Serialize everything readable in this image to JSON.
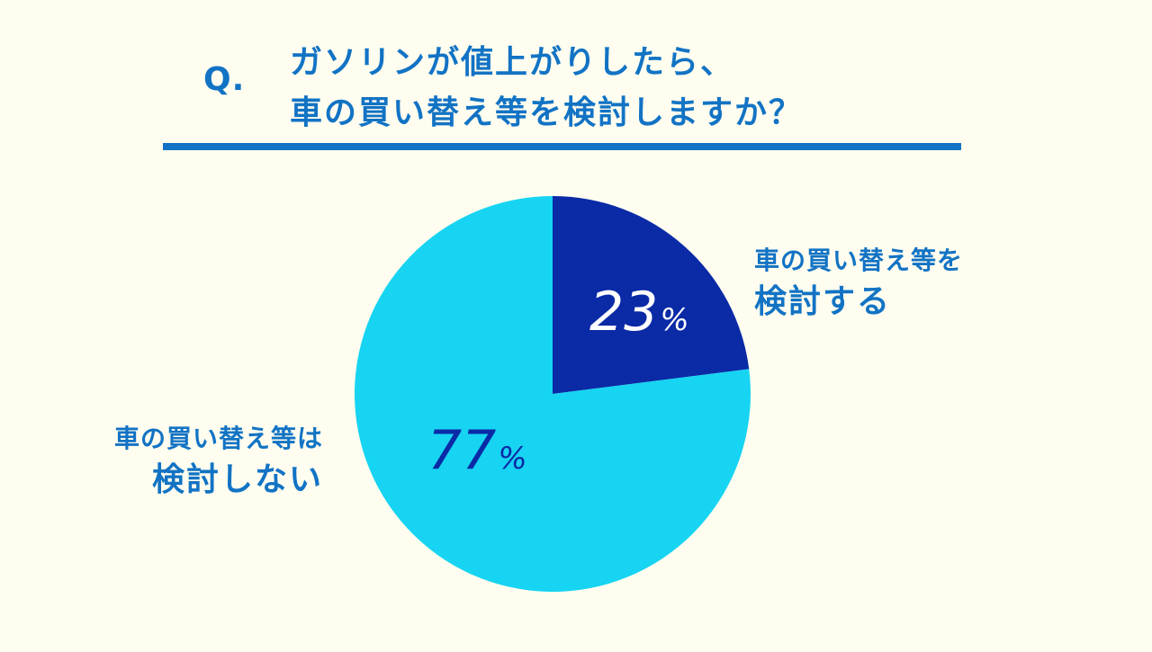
{
  "header": {
    "q_mark": "Q.",
    "question_line1": "ガソリンが値上がりしたら、",
    "question_line2": "車の買い替え等を検討しますか？"
  },
  "colors": {
    "background": "#fefdf0",
    "accent": "#1273c4",
    "slice_yes": "#0a2aa6",
    "slice_no": "#17d4f2"
  },
  "chart_data": {
    "type": "pie",
    "slices": [
      {
        "label_line1": "車の買い替え等を",
        "label_line2": "検討する",
        "value": 23,
        "value_text": "23",
        "unit": "%",
        "color": "#0a2aa6"
      },
      {
        "label_line1": "車の買い替え等は",
        "label_line2": "検討しない",
        "value": 77,
        "value_text": "77",
        "unit": "%",
        "color": "#17d4f2"
      }
    ]
  }
}
